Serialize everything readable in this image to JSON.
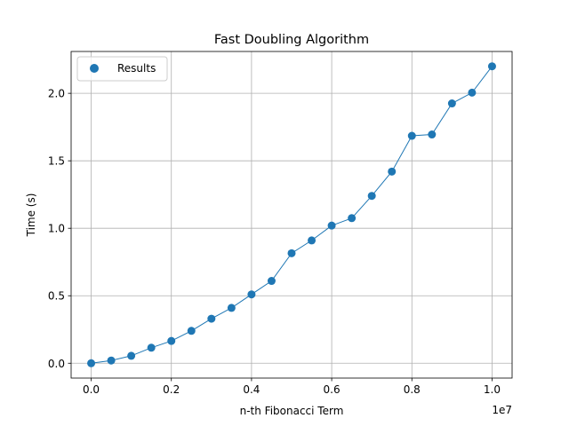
{
  "chart_data": {
    "type": "scatter",
    "title": "Fast Doubling Algorithm",
    "xlabel": "n-th Fibonacci Term",
    "ylabel": "Time (s)",
    "x_offset_label": "1e7",
    "xlim": [
      -0.05,
      1.05
    ],
    "ylim": [
      -0.11,
      2.31
    ],
    "x_ticks": [
      0.0,
      0.2,
      0.4,
      0.6,
      0.8,
      1.0
    ],
    "x_tick_labels": [
      "0.0",
      "0.2",
      "0.4",
      "0.6",
      "0.8",
      "1.0"
    ],
    "y_ticks": [
      0.0,
      0.5,
      1.0,
      1.5,
      2.0
    ],
    "y_tick_labels": [
      "0.0",
      "0.5",
      "1.0",
      "1.5",
      "2.0"
    ],
    "grid": true,
    "legend_position": "top-left",
    "series": [
      {
        "name": "Results",
        "color": "#1f77b4",
        "x": [
          0.0,
          0.05,
          0.1,
          0.15,
          0.2,
          0.25,
          0.3,
          0.35,
          0.4,
          0.45,
          0.5,
          0.55,
          0.6,
          0.65,
          0.7,
          0.75,
          0.8,
          0.85,
          0.9,
          0.95,
          1.0
        ],
        "y": [
          0.0,
          0.02,
          0.055,
          0.115,
          0.165,
          0.24,
          0.33,
          0.41,
          0.51,
          0.61,
          0.815,
          0.91,
          1.02,
          1.075,
          1.24,
          1.42,
          1.685,
          1.695,
          1.925,
          2.005,
          2.2
        ]
      }
    ]
  }
}
